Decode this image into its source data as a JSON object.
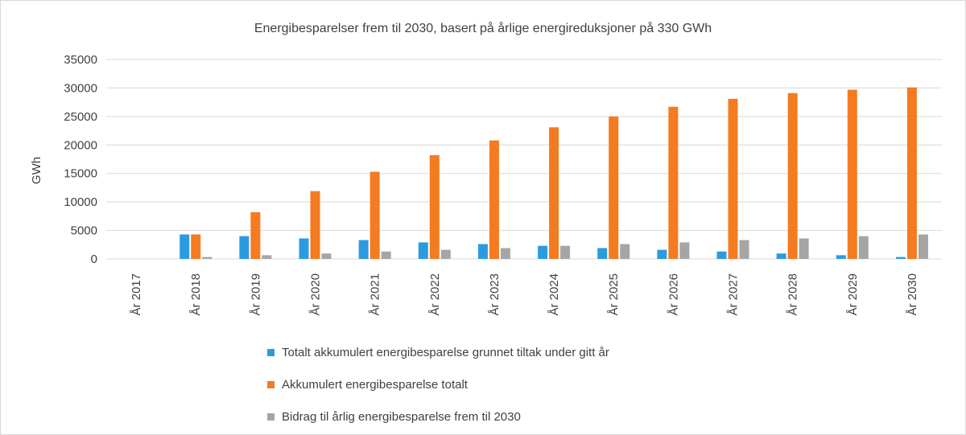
{
  "chart_data": {
    "type": "bar",
    "title": "Energibesparelser frem til 2030, basert på årlige energireduksjoner på 330 GWh",
    "ylabel": "GWh",
    "xlabel": "",
    "ylim": [
      0,
      35000
    ],
    "yticks": [
      0,
      5000,
      10000,
      15000,
      20000,
      25000,
      30000,
      35000
    ],
    "grid": true,
    "legend_position": "bottom",
    "categories": [
      "År 2017",
      "År 2018",
      "År 2019",
      "År 2020",
      "År 2021",
      "År 2022",
      "År 2023",
      "År 2024",
      "År 2025",
      "År 2026",
      "År 2027",
      "År 2028",
      "År 2029",
      "År 2030"
    ],
    "series": [
      {
        "name": "Totalt akkumulert energibesparelse grunnet tiltak under gitt år",
        "color": "#2b9be0",
        "values": [
          0,
          4300,
          4000,
          3600,
          3300,
          2900,
          2600,
          2300,
          1900,
          1600,
          1300,
          950,
          650,
          330
        ]
      },
      {
        "name": "Akkumulert energibesparelse totalt",
        "color": "#f47b20",
        "values": [
          0,
          4300,
          8200,
          11900,
          15300,
          18200,
          20800,
          23100,
          25000,
          26700,
          28100,
          29100,
          29700,
          30100
        ]
      },
      {
        "name": "Bidrag til årlig energibesparelse frem til 2030",
        "color": "#a5a5a5",
        "values": [
          0,
          330,
          650,
          950,
          1300,
          1600,
          1900,
          2300,
          2600,
          2900,
          3300,
          3600,
          4000,
          4300
        ]
      }
    ]
  }
}
